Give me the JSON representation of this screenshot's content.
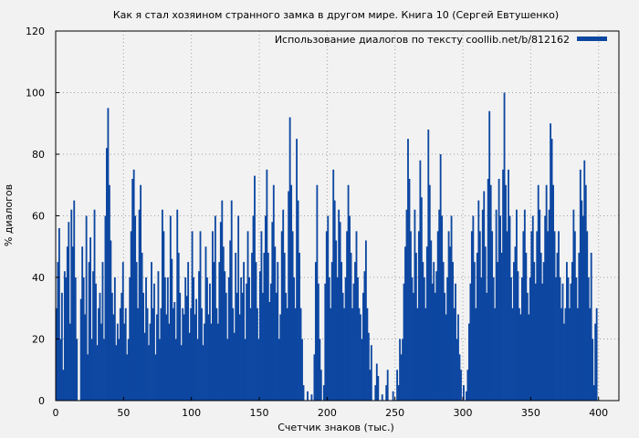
{
  "chart_data": {
    "type": "bar",
    "title": "Как я стал хозяином странного замка в другом мире. Книга 10 (Сергей Евтушенко)",
    "xlabel": "Счетчик знаков (тыс.)",
    "ylabel": "% диалогов",
    "xlim": [
      0,
      415
    ],
    "ylim": [
      0,
      120
    ],
    "xticks": [
      0,
      50,
      100,
      150,
      200,
      250,
      300,
      350,
      400
    ],
    "yticks": [
      0,
      20,
      40,
      60,
      80,
      100,
      120
    ],
    "grid": true,
    "legend_position": "top-right",
    "series": [
      {
        "name": "Использование диалогов по тексту coollib.net/b/812162",
        "color": "#0d47a1",
        "x_start": 0,
        "x_step": 1,
        "values": [
          30,
          45,
          56,
          20,
          35,
          10,
          42,
          40,
          50,
          58,
          25,
          62,
          50,
          65,
          40,
          20,
          0,
          0,
          33,
          50,
          40,
          28,
          60,
          15,
          45,
          53,
          20,
          42,
          62,
          38,
          18,
          30,
          35,
          25,
          45,
          20,
          60,
          82,
          95,
          70,
          52,
          35,
          28,
          40,
          18,
          25,
          20,
          30,
          35,
          45,
          25,
          30,
          15,
          20,
          40,
          55,
          72,
          75,
          60,
          45,
          30,
          62,
          70,
          48,
          35,
          22,
          40,
          30,
          18,
          25,
          45,
          30,
          38,
          15,
          28,
          42,
          20,
          30,
          62,
          55,
          40,
          28,
          40,
          25,
          60,
          46,
          30,
          32,
          20,
          62,
          48,
          35,
          18,
          30,
          28,
          40,
          34,
          45,
          22,
          30,
          55,
          40,
          28,
          33,
          20,
          42,
          55,
          30,
          18,
          25,
          50,
          40,
          28,
          38,
          25,
          55,
          45,
          60,
          30,
          25,
          45,
          58,
          65,
          50,
          42,
          35,
          20,
          40,
          52,
          65,
          30,
          22,
          48,
          35,
          60,
          28,
          40,
          35,
          45,
          20,
          38,
          55,
          40,
          30,
          48,
          60,
          73,
          45,
          30,
          20,
          42,
          55,
          35,
          48,
          60,
          75,
          48,
          32,
          38,
          58,
          70,
          50,
          35,
          45,
          20,
          28,
          55,
          62,
          48,
          35,
          30,
          68,
          92,
          70,
          55,
          40,
          30,
          85,
          65,
          48,
          30,
          20,
          5,
          0,
          0,
          3,
          0,
          0,
          2,
          0,
          15,
          45,
          70,
          38,
          20,
          10,
          0,
          5,
          38,
          55,
          60,
          40,
          30,
          45,
          75,
          65,
          52,
          40,
          62,
          58,
          45,
          35,
          30,
          40,
          55,
          70,
          60,
          48,
          30,
          38,
          45,
          55,
          40,
          30,
          28,
          20,
          35,
          42,
          52,
          30,
          22,
          10,
          18,
          0,
          0,
          5,
          12,
          8,
          0,
          0,
          2,
          0,
          0,
          5,
          10,
          0,
          0,
          0,
          3,
          0,
          0,
          10,
          5,
          20,
          15,
          20,
          38,
          50,
          62,
          85,
          72,
          55,
          40,
          35,
          62,
          48,
          30,
          55,
          78,
          66,
          45,
          40,
          30,
          50,
          88,
          70,
          52,
          38,
          45,
          35,
          42,
          55,
          62,
          80,
          60,
          45,
          35,
          28,
          40,
          55,
          50,
          60,
          45,
          30,
          38,
          20,
          28,
          15,
          10,
          0,
          5,
          0,
          3,
          10,
          25,
          38,
          55,
          60,
          45,
          30,
          48,
          65,
          55,
          40,
          62,
          68,
          50,
          35,
          72,
          94,
          70,
          55,
          40,
          30,
          62,
          45,
          72,
          60,
          48,
          75,
          100,
          70,
          55,
          75,
          60,
          40,
          30,
          45,
          50,
          62,
          42,
          30,
          28,
          40,
          55,
          62,
          48,
          35,
          28,
          40,
          55,
          60,
          45,
          38,
          55,
          70,
          62,
          48,
          38,
          45,
          60,
          70,
          55,
          62,
          90,
          85,
          70,
          55,
          40,
          48,
          55,
          40,
          30,
          38,
          25,
          30,
          45,
          40,
          30,
          38,
          45,
          62,
          55,
          40,
          30,
          48,
          75,
          65,
          60,
          78,
          70,
          55,
          40,
          30,
          48,
          20,
          5,
          25,
          30
        ]
      }
    ]
  }
}
